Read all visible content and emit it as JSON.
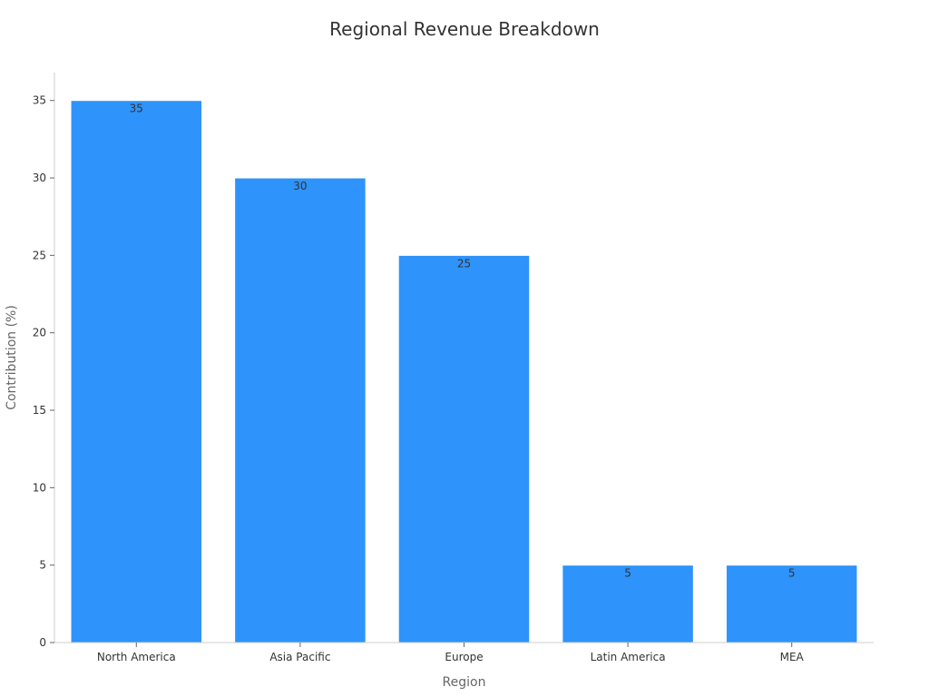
{
  "chart_data": {
    "type": "bar",
    "title": "Regional Revenue Breakdown",
    "xlabel": "Region",
    "ylabel": "Contribution (%)",
    "categories": [
      "North America",
      "Asia Pacific",
      "Europe",
      "Latin America",
      "MEA"
    ],
    "values": [
      35,
      30,
      25,
      5,
      5
    ],
    "data_labels": [
      "35",
      "30",
      "25",
      "5",
      "5"
    ],
    "yticks": [
      0,
      5,
      10,
      15,
      20,
      25,
      30,
      35
    ],
    "ylim": [
      0,
      36.8
    ],
    "grid": false,
    "legend": "none",
    "bar_color": "#2e93fa"
  }
}
